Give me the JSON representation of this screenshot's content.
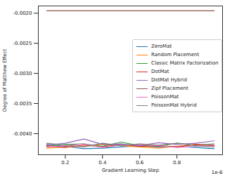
{
  "chart_data": {
    "type": "line",
    "xlabel": "Gradient Learning Step",
    "ylabel": "Degree of Matthew Effect",
    "x_offset_text": "1e-6",
    "x": [
      1e-07,
      2e-07,
      3e-07,
      4e-07,
      5e-07,
      6e-07,
      7e-07,
      8e-07,
      9e-07,
      1e-06
    ],
    "xlim": [
      5.5e-08,
      1.045e-06
    ],
    "xticks": [
      {
        "value": 2e-07,
        "label": "0.2"
      },
      {
        "value": 4e-07,
        "label": "0.4"
      },
      {
        "value": 6e-07,
        "label": "0.6"
      },
      {
        "value": 8e-07,
        "label": "0.8"
      }
    ],
    "ylim": [
      -0.00435,
      -0.00188
    ],
    "yticks": [
      {
        "value": -0.002,
        "label": "-0.0020"
      },
      {
        "value": -0.0025,
        "label": "-0.0025"
      },
      {
        "value": -0.003,
        "label": "-0.0030"
      },
      {
        "value": -0.0035,
        "label": "-0.0035"
      },
      {
        "value": -0.004,
        "label": "-0.0040"
      }
    ],
    "legend": "center right",
    "grid": false,
    "series": [
      {
        "name": "ZeroMat",
        "color": "#1f77b4",
        "values": [
          -0.00418,
          -0.00421,
          -0.00425,
          -0.00424,
          -0.00422,
          -0.0042,
          -0.00422,
          -0.00421,
          -0.00423,
          -0.00425
        ]
      },
      {
        "name": "Random Placement",
        "color": "#ff7f0e",
        "values": [
          -0.00424,
          -0.00422,
          -0.00421,
          -0.00418,
          -0.0042,
          -0.00422,
          -0.00424,
          -0.00421,
          -0.00418,
          -0.0042
        ]
      },
      {
        "name": "Classic Matrix Factorization",
        "color": "#2ca02c",
        "values": [
          -0.00421,
          -0.00418,
          -0.00417,
          -0.00421,
          -0.00414,
          -0.0042,
          -0.00421,
          -0.00416,
          -0.00419,
          -0.00417
        ]
      },
      {
        "name": "DotMat",
        "color": "#d62728",
        "values": [
          -0.0042,
          -0.00423,
          -0.00419,
          -0.00422,
          -0.00418,
          -0.00421,
          -0.0042,
          -0.00422,
          -0.00418,
          -0.0042
        ]
      },
      {
        "name": "DotMat Hybrid",
        "color": "#9467bd",
        "values": [
          -0.00419,
          -0.00416,
          -0.00409,
          -0.00418,
          -0.00417,
          -0.0042,
          -0.00415,
          -0.00418,
          -0.00416,
          -0.00412
        ]
      },
      {
        "name": "Zipf Placement",
        "color": "#8c564b",
        "values": [
          -0.00196,
          -0.00196,
          -0.00196,
          -0.00196,
          -0.00196,
          -0.00196,
          -0.00196,
          -0.00196,
          -0.00196,
          -0.00196
        ]
      },
      {
        "name": "PoissonMat",
        "color": "#e377c2",
        "values": [
          -0.00422,
          -0.0042,
          -0.00417,
          -0.00423,
          -0.00419,
          -0.00418,
          -0.0042,
          -0.00423,
          -0.00421,
          -0.00418
        ]
      },
      {
        "name": "PoissonMat Hybrid",
        "color": "#7f7f7f",
        "values": [
          -0.00416,
          -0.00419,
          -0.00422,
          -0.00416,
          -0.0042,
          -0.00417,
          -0.00419,
          -0.00416,
          -0.0042,
          -0.00422
        ]
      }
    ]
  }
}
